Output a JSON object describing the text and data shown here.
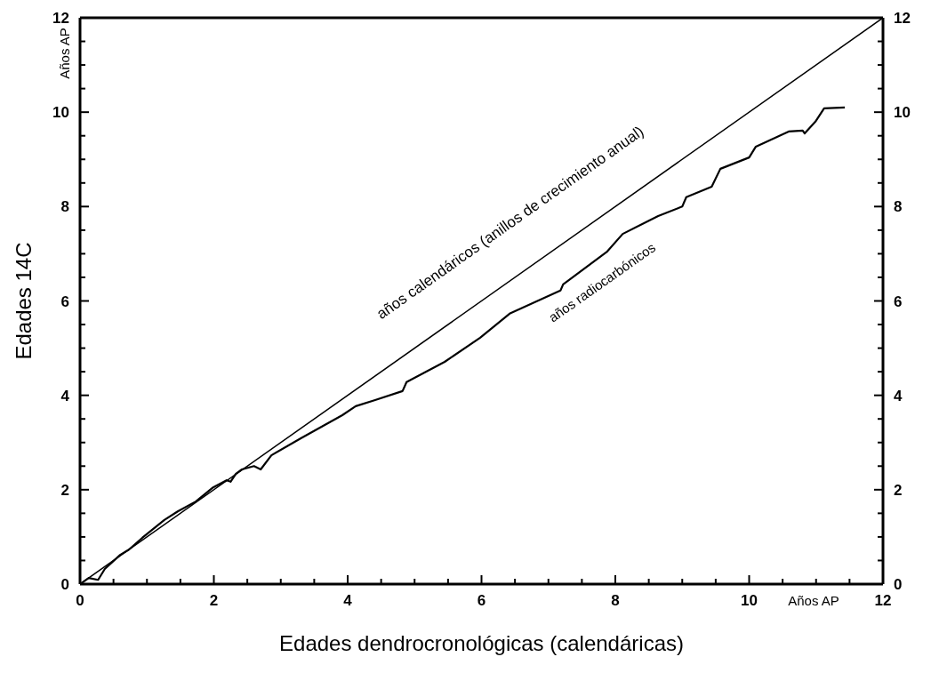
{
  "chart_data": {
    "type": "line",
    "xlabel": "Edades dendrocronológicas (calendáricas)",
    "ylabel": "Edades 14C",
    "marker": "none",
    "xlim": [
      0,
      12
    ],
    "ylim": [
      0,
      12
    ],
    "y2lim": [
      0,
      12
    ],
    "xticks": [
      0,
      {
        "value": 0.5,
        "label": null
      },
      {
        "value": 1,
        "label": null
      },
      {
        "value": 1.5,
        "label": null
      },
      2,
      {
        "value": 2.5,
        "label": null
      },
      {
        "value": 3,
        "label": null
      },
      {
        "value": 3.5,
        "label": null
      },
      4,
      {
        "value": 4.5,
        "label": null
      },
      {
        "value": 5,
        "label": null
      },
      {
        "value": 5.5,
        "label": null
      },
      6,
      {
        "value": 6.5,
        "label": null
      },
      {
        "value": 7,
        "label": null
      },
      {
        "value": 7.5,
        "label": null
      },
      8,
      {
        "value": 8.5,
        "label": null
      },
      {
        "value": 9,
        "label": null
      },
      {
        "value": 9.5,
        "label": null
      },
      10,
      {
        "value": 10.5,
        "label": null
      },
      {
        "value": 11,
        "label": null
      },
      {
        "value": 11.5,
        "label": null
      },
      12
    ],
    "yticks": [
      0,
      {
        "value": 0.5,
        "label": null
      },
      {
        "value": 1,
        "label": null
      },
      {
        "value": 1.5,
        "label": null
      },
      2,
      {
        "value": 2.5,
        "label": null
      },
      {
        "value": 3,
        "label": null
      },
      {
        "value": 3.5,
        "label": null
      },
      4,
      {
        "value": 4.5,
        "label": null
      },
      {
        "value": 5,
        "label": null
      },
      {
        "value": 5.5,
        "label": null
      },
      6,
      {
        "value": 6.5,
        "label": null
      },
      {
        "value": 7,
        "label": null
      },
      {
        "value": 7.5,
        "label": null
      },
      8,
      {
        "value": 8.5,
        "label": null
      },
      {
        "value": 9,
        "label": null
      },
      {
        "value": 9.5,
        "label": null
      },
      10,
      {
        "value": 10.5,
        "label": null
      },
      {
        "value": 11,
        "label": null
      },
      {
        "value": 11.5,
        "label": null
      },
      12
    ],
    "y2ticks": [
      0,
      {
        "value": 0.5,
        "label": null
      },
      {
        "value": 1,
        "label": null
      },
      {
        "value": 1.5,
        "label": null
      },
      2,
      {
        "value": 2.5,
        "label": null
      },
      {
        "value": 3,
        "label": null
      },
      {
        "value": 3.5,
        "label": null
      },
      4,
      {
        "value": 4.5,
        "label": null
      },
      {
        "value": 5,
        "label": null
      },
      {
        "value": 5.5,
        "label": null
      },
      6,
      {
        "value": 6.5,
        "label": null
      },
      {
        "value": 7,
        "label": null
      },
      {
        "value": 7.5,
        "label": null
      },
      8,
      {
        "value": 8.5,
        "label": null
      },
      {
        "value": 9,
        "label": null
      },
      {
        "value": 9.5,
        "label": null
      },
      10,
      {
        "value": 10.5,
        "label": null
      },
      {
        "value": 11,
        "label": null
      },
      {
        "value": 11.5,
        "label": null
      },
      12
    ],
    "series": [
      {
        "color": "#000000",
        "x": [
          0,
          12
        ],
        "values": [
          0,
          12
        ]
      },
      {
        "color": "#000000",
        "x": [
          0,
          0.13,
          0.27,
          0.37,
          0.6,
          0.73,
          0.93,
          1.26,
          1.46,
          1.73,
          1.99,
          2.19,
          2.25,
          2.33,
          2.42,
          2.6,
          2.7,
          2.86,
          3.3,
          3.92,
          4.12,
          4.41,
          4.82,
          4.88,
          5.45,
          5.98,
          6.42,
          7.18,
          7.22,
          7.88,
          8.11,
          8.64,
          9.0,
          9.06,
          9.44,
          9.57,
          10.0,
          10.1,
          10.59,
          10.8,
          10.83,
          10.99,
          11.12,
          11.43
        ],
        "values": [
          0,
          0.13,
          0.09,
          0.32,
          0.62,
          0.73,
          0.98,
          1.36,
          1.54,
          1.75,
          2.05,
          2.2,
          2.17,
          2.34,
          2.43,
          2.5,
          2.43,
          2.73,
          3.09,
          3.58,
          3.77,
          3.9,
          4.09,
          4.28,
          4.71,
          5.22,
          5.73,
          6.22,
          6.35,
          7.05,
          7.42,
          7.8,
          8.0,
          8.2,
          8.42,
          8.8,
          9.04,
          9.27,
          9.59,
          9.61,
          9.55,
          9.8,
          10.08,
          10.1
        ]
      }
    ],
    "annotations": [
      "años calendáricos (anillos de crecimiento anual)",
      "años radiocarbónicos",
      "Años AP",
      "Años AP"
    ]
  }
}
